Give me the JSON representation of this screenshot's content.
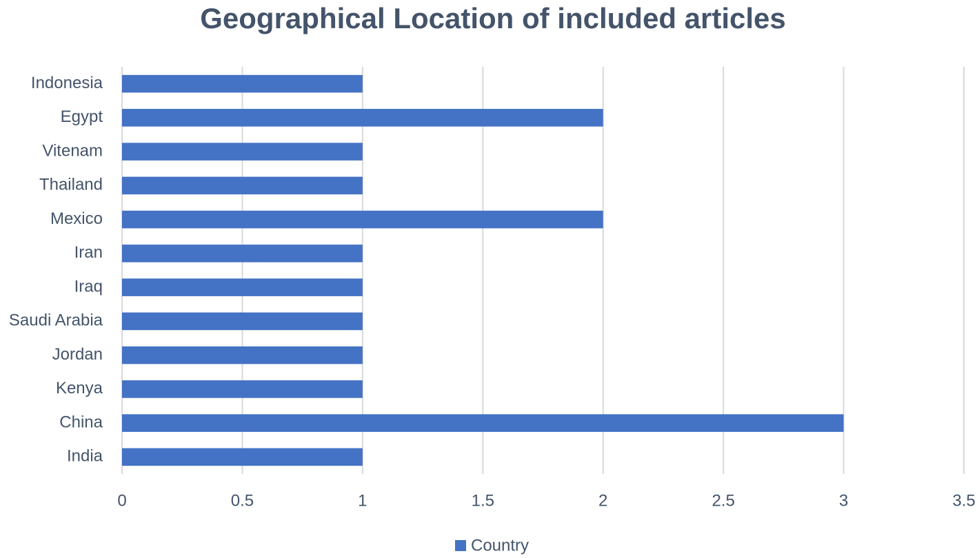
{
  "chart_data": {
    "type": "bar",
    "orientation": "horizontal",
    "title": "Geographical Location of included articles",
    "categories": [
      "India",
      "China",
      "Kenya",
      "Jordan",
      "Saudi Arabia",
      "Iraq",
      "Iran",
      "Mexico",
      "Thailand",
      "Vitenam",
      "Egypt",
      "Indonesia"
    ],
    "series": [
      {
        "name": "Country",
        "color": "#4472c4",
        "values": [
          1,
          3,
          1,
          1,
          1,
          1,
          1,
          2,
          1,
          1,
          2,
          1
        ]
      }
    ],
    "xlim": [
      0,
      3.5
    ],
    "xticks": [
      0,
      0.5,
      1,
      1.5,
      2,
      2.5,
      3,
      3.5
    ],
    "grid": true,
    "legend": "bottom"
  }
}
